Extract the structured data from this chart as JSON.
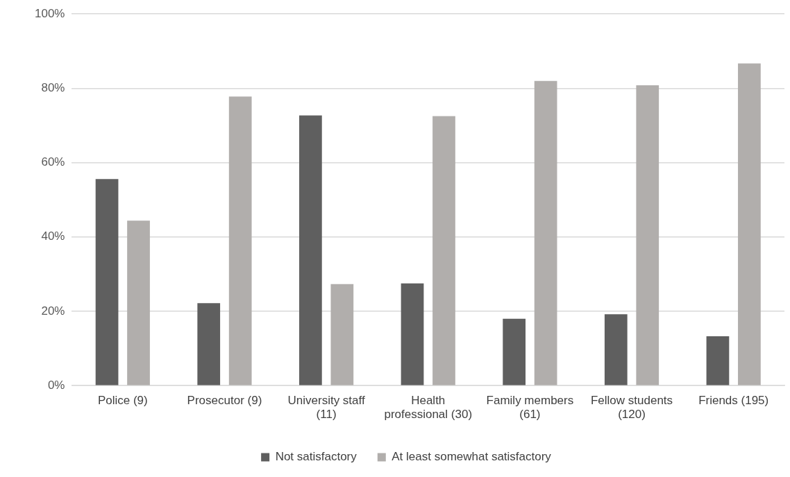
{
  "chart_data": {
    "type": "bar",
    "categories": [
      "Police (9)",
      "Prosecutor (9)",
      "University staff (11)",
      "Health professional (30)",
      "Family members (61)",
      "Fellow students (120)",
      "Friends (195)"
    ],
    "series": [
      {
        "name": "Not satisfactory",
        "color": "#5f5f5f",
        "values": [
          55.6,
          22.2,
          72.7,
          27.5,
          18,
          19.2,
          13.3
        ]
      },
      {
        "name": "At least somewhat satisfactory",
        "color": "#b1aeac",
        "values": [
          44.4,
          77.8,
          27.3,
          72.5,
          82,
          80.8,
          86.7
        ]
      }
    ],
    "ylim": [
      0,
      100
    ],
    "yticks": [
      {
        "value": 0,
        "label": "0%"
      },
      {
        "value": 20,
        "label": "20%"
      },
      {
        "value": 40,
        "label": "40%"
      },
      {
        "value": 60,
        "label": "60%"
      },
      {
        "value": 80,
        "label": "80%"
      },
      {
        "value": 100,
        "label": "100%"
      }
    ],
    "grid": "y",
    "legend": "bottom"
  }
}
